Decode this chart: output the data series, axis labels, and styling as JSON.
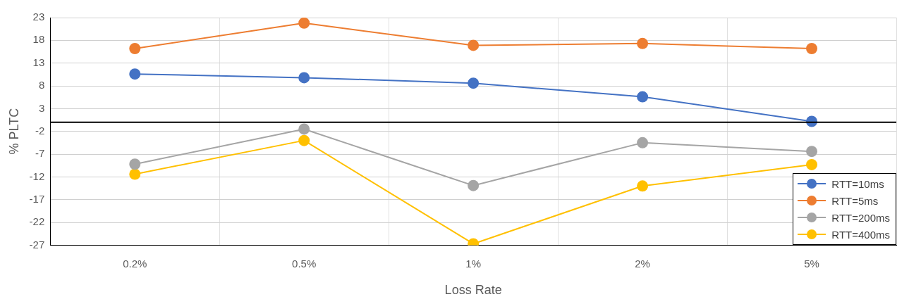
{
  "chart_data": {
    "type": "line",
    "xlabel": "Loss Rate",
    "ylabel": "% PLTC",
    "categories": [
      "0.2%",
      "0.5%",
      "1%",
      "2%",
      "5%"
    ],
    "series": [
      {
        "name": "RTT=10ms",
        "color": "#4472c4",
        "values": [
          10.6,
          9.8,
          8.6,
          5.6,
          0.2
        ]
      },
      {
        "name": "RTT=5ms",
        "color": "#ed7d31",
        "values": [
          16.2,
          21.8,
          16.9,
          17.3,
          16.2
        ]
      },
      {
        "name": "RTT=200ms",
        "color": "#a5a5a5",
        "values": [
          -9.2,
          -1.5,
          -13.9,
          -4.5,
          -6.4
        ]
      },
      {
        "name": "RTT=400ms",
        "color": "#ffc000",
        "values": [
          -11.4,
          -4.0,
          -26.7,
          -14.0,
          -9.3
        ]
      }
    ],
    "ylim": [
      -27,
      23
    ],
    "yticks": [
      -27,
      -22,
      -17,
      -12,
      -7,
      -2,
      3,
      8,
      13,
      18,
      23
    ],
    "ref_lines": [
      {
        "axis": "y",
        "value": 0,
        "color": "#000000"
      }
    ],
    "grid": true,
    "legend": "bottom right",
    "marker": "circle",
    "line_style": "solid"
  }
}
